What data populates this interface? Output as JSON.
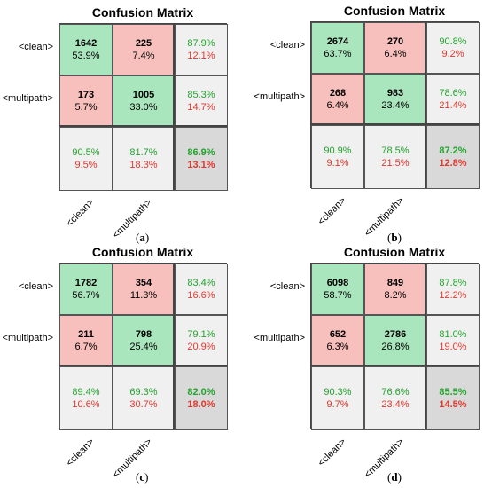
{
  "chart_data": [
    {
      "type": "heatmap",
      "panel_label": "a",
      "title": "Confusion Matrix",
      "row_labels": [
        "<clean>",
        "<multipath>"
      ],
      "col_labels": [
        "<clean>",
        "<multipath>"
      ],
      "matrix": [
        [
          {
            "count": "1642",
            "pct": "53.9%"
          },
          {
            "count": "225",
            "pct": "7.4%"
          }
        ],
        [
          {
            "count": "173",
            "pct": "5.7%"
          },
          {
            "count": "1005",
            "pct": "33.0%"
          }
        ]
      ],
      "row_summary": [
        [
          "87.9%",
          "12.1%"
        ],
        [
          "85.3%",
          "14.7%"
        ]
      ],
      "col_summary": [
        [
          "90.5%",
          "9.5%"
        ],
        [
          "81.7%",
          "18.3%"
        ]
      ],
      "overall": [
        "86.9%",
        "13.1%"
      ]
    },
    {
      "type": "heatmap",
      "panel_label": "b",
      "title": "Confusion Matrix",
      "row_labels": [
        "<clean>",
        "<multipath>"
      ],
      "col_labels": [
        "<clean>",
        "<multipath>"
      ],
      "matrix": [
        [
          {
            "count": "2674",
            "pct": "63.7%"
          },
          {
            "count": "270",
            "pct": "6.4%"
          }
        ],
        [
          {
            "count": "268",
            "pct": "6.4%"
          },
          {
            "count": "983",
            "pct": "23.4%"
          }
        ]
      ],
      "row_summary": [
        [
          "90.8%",
          "9.2%"
        ],
        [
          "78.6%",
          "21.4%"
        ]
      ],
      "col_summary": [
        [
          "90.9%",
          "9.1%"
        ],
        [
          "78.5%",
          "21.5%"
        ]
      ],
      "overall": [
        "87.2%",
        "12.8%"
      ]
    },
    {
      "type": "heatmap",
      "panel_label": "c",
      "title": "Confusion Matrix",
      "row_labels": [
        "<clean>",
        "<multipath>"
      ],
      "col_labels": [
        "<clean>",
        "<multipath>"
      ],
      "matrix": [
        [
          {
            "count": "1782",
            "pct": "56.7%"
          },
          {
            "count": "354",
            "pct": "11.3%"
          }
        ],
        [
          {
            "count": "211",
            "pct": "6.7%"
          },
          {
            "count": "798",
            "pct": "25.4%"
          }
        ]
      ],
      "row_summary": [
        [
          "83.4%",
          "16.6%"
        ],
        [
          "79.1%",
          "20.9%"
        ]
      ],
      "col_summary": [
        [
          "89.4%",
          "10.6%"
        ],
        [
          "69.3%",
          "30.7%"
        ]
      ],
      "overall": [
        "82.0%",
        "18.0%"
      ]
    },
    {
      "type": "heatmap",
      "panel_label": "d",
      "title": "Confusion Matrix",
      "row_labels": [
        "<clean>",
        "<multipath>"
      ],
      "col_labels": [
        "<clean>",
        "<multipath>"
      ],
      "matrix": [
        [
          {
            "count": "6098",
            "pct": "58.7%"
          },
          {
            "count": "849",
            "pct": "8.2%"
          }
        ],
        [
          {
            "count": "652",
            "pct": "6.3%"
          },
          {
            "count": "2786",
            "pct": "26.8%"
          }
        ]
      ],
      "row_summary": [
        [
          "87.8%",
          "12.2%"
        ],
        [
          "81.0%",
          "19.0%"
        ]
      ],
      "col_summary": [
        [
          "90.3%",
          "9.7%"
        ],
        [
          "76.6%",
          "23.4%"
        ]
      ],
      "overall": [
        "85.5%",
        "14.5%"
      ]
    }
  ],
  "colors": {
    "correct": "#a9e5bd",
    "incorrect": "#f8c0bd",
    "summary": "#f0f0f0",
    "overall": "#d9d9d9",
    "pct_good": "#22a32c",
    "pct_bad": "#e0382e"
  }
}
